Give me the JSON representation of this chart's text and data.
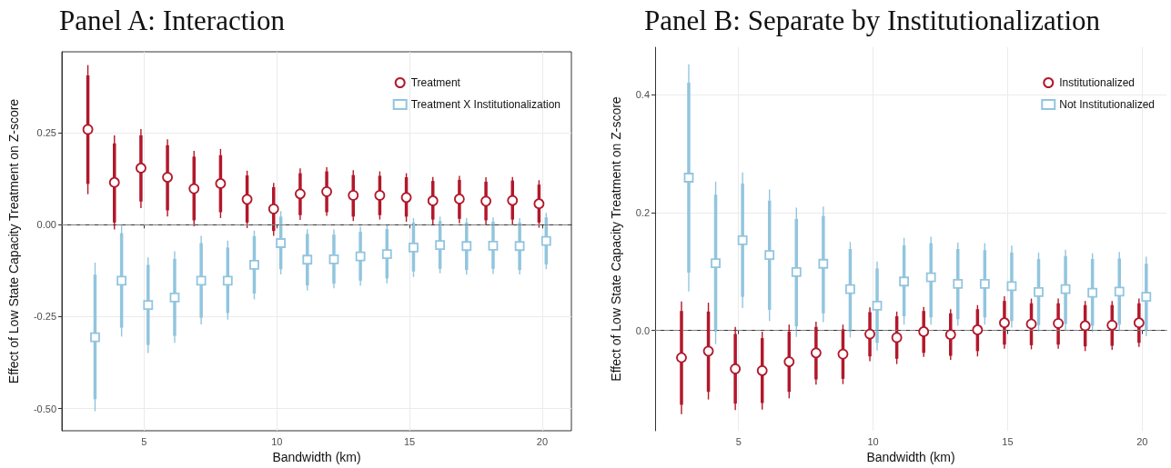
{
  "chart_data": [
    {
      "type": "scatter",
      "title": "Panel A: Interaction",
      "xlabel": "Bandwidth (km)",
      "ylabel": "Effect of Low State Capacity Treatment on Z-score",
      "xlim": [
        1.9,
        21.1
      ],
      "ylim": [
        -0.56,
        0.47
      ],
      "xticks": [
        5,
        10,
        15,
        20
      ],
      "yticks": [
        {
          "value": -0.5,
          "label": "-0.50"
        },
        {
          "value": -0.25,
          "label": "-0.25"
        },
        {
          "value": 0,
          "label": "0.00"
        },
        {
          "value": 0.25,
          "label": "0.25"
        }
      ],
      "grid": true,
      "legend": "top right",
      "ref_lines": [
        {
          "axis": "y",
          "value": 0,
          "line_style": "dashed",
          "color": "#7f7f7f"
        }
      ],
      "series": [
        {
          "name": "Treatment",
          "color": "#b2182b",
          "marker": "circle",
          "x": [
            2.88,
            3.88,
            4.88,
            5.88,
            6.88,
            7.88,
            8.88,
            9.88,
            10.88,
            11.88,
            12.88,
            13.88,
            14.88,
            15.88,
            16.88,
            17.88,
            18.88,
            19.88
          ],
          "values": [
            0.259,
            0.115,
            0.154,
            0.129,
            0.098,
            0.112,
            0.069,
            0.043,
            0.084,
            0.09,
            0.08,
            0.08,
            0.074,
            0.065,
            0.07,
            0.064,
            0.066,
            0.057
          ],
          "errors": [
            [
              0.083,
              0.434
            ],
            [
              -0.013,
              0.243
            ],
            [
              0.045,
              0.26
            ],
            [
              0.022,
              0.232
            ],
            [
              -0.004,
              0.201
            ],
            [
              0.018,
              0.206
            ],
            [
              -0.009,
              0.147
            ],
            [
              -0.03,
              0.114
            ],
            [
              0.013,
              0.153
            ],
            [
              0.024,
              0.156
            ],
            [
              0.01,
              0.148
            ],
            [
              0.014,
              0.145
            ],
            [
              0.008,
              0.14
            ],
            [
              0,
              0.13
            ],
            [
              0.004,
              0.133
            ],
            [
              0,
              0.129
            ],
            [
              0.001,
              0.13
            ],
            [
              -0.008,
              0.121
            ]
          ]
        },
        {
          "name": "Treatment X Institutionalization",
          "color": "#92c5de",
          "marker": "square",
          "x": [
            3.15,
            4.15,
            5.15,
            6.15,
            7.15,
            8.15,
            9.15,
            10.15,
            11.15,
            12.15,
            13.15,
            14.15,
            15.15,
            16.15,
            17.15,
            18.15,
            19.15,
            20.15
          ],
          "values": [
            -0.306,
            -0.152,
            -0.218,
            -0.198,
            -0.152,
            -0.152,
            -0.109,
            -0.05,
            -0.095,
            -0.094,
            -0.086,
            -0.08,
            -0.062,
            -0.055,
            -0.058,
            -0.057,
            -0.058,
            -0.044
          ],
          "errors": [
            [
              -0.507,
              -0.103
            ],
            [
              -0.304,
              0.002
            ],
            [
              -0.349,
              -0.089
            ],
            [
              -0.321,
              -0.072
            ],
            [
              -0.271,
              -0.03
            ],
            [
              -0.258,
              -0.043
            ],
            [
              -0.203,
              -0.016
            ],
            [
              -0.135,
              0.037
            ],
            [
              -0.179,
              -0.012
            ],
            [
              -0.173,
              -0.013
            ],
            [
              -0.166,
              -0.005
            ],
            [
              -0.16,
              -0.001
            ],
            [
              -0.142,
              0.018
            ],
            [
              -0.132,
              0.022
            ],
            [
              -0.136,
              0.018
            ],
            [
              -0.134,
              0.02
            ],
            [
              -0.135,
              0.018
            ],
            [
              -0.121,
              0.032
            ]
          ]
        },
        {
          "type": "bar",
          "color": "#b2182b",
          "x": [
            2.88,
            3.88,
            4.88,
            5.88,
            6.88,
            7.88,
            8.88,
            9.88,
            10.88,
            11.88,
            12.88,
            13.88,
            14.88,
            15.88,
            16.88,
            17.88,
            18.88,
            19.88
          ],
          "base": [
            0.111,
            0.006,
            0.063,
            0.039,
            0.012,
            0.034,
            0.006,
            -0.017,
            0.026,
            0.034,
            0.022,
            0.026,
            0.022,
            0.014,
            0.016,
            0.012,
            0.014,
            0.006
          ],
          "values": [
            0.295,
            0.215,
            0.18,
            0.177,
            0.173,
            0.155,
            0.128,
            0.119,
            0.114,
            0.111,
            0.113,
            0.107,
            0.107,
            0.105,
            0.106,
            0.105,
            0.106,
            0.103
          ]
        },
        {
          "type": "bar",
          "color": "#92c5de",
          "x": [
            3.15,
            4.15,
            5.15,
            6.15,
            7.15,
            8.15,
            9.15,
            10.15,
            11.15,
            12.15,
            13.15,
            14.15,
            15.15,
            16.15,
            17.15,
            18.15,
            19.15,
            20.15
          ],
          "base": [
            -0.474,
            -0.28,
            -0.327,
            -0.302,
            -0.253,
            -0.24,
            -0.187,
            -0.121,
            -0.165,
            -0.16,
            -0.152,
            -0.146,
            -0.127,
            -0.12,
            -0.123,
            -0.12,
            -0.123,
            -0.108
          ],
          "values": [
            0.338,
            0.257,
            0.218,
            0.209,
            0.203,
            0.178,
            0.156,
            0.143,
            0.14,
            0.133,
            0.133,
            0.134,
            0.133,
            0.13,
            0.129,
            0.128,
            0.129,
            0.128
          ]
        }
      ]
    },
    {
      "type": "scatter",
      "title": "Panel B: Separate by Institutionalization",
      "xlabel": "Bandwidth (km)",
      "ylabel": "Effect of Low State Capacity Treatment on Z-score",
      "xlim": [
        1.9,
        20.9
      ],
      "ylim": [
        -0.17,
        0.48
      ],
      "xticks": [
        5,
        10,
        15,
        20
      ],
      "yticks": [
        {
          "value": 0,
          "label": "0.0"
        },
        {
          "value": 0.2,
          "label": "0.2"
        },
        {
          "value": 0.4,
          "label": "0.4"
        }
      ],
      "grid": true,
      "legend": "top right",
      "ref_lines": [
        {
          "axis": "y",
          "value": 0,
          "line_style": "dashed",
          "color": "#7f7f7f"
        }
      ],
      "series": [
        {
          "name": "Institutionalized",
          "color": "#b2182b",
          "marker": "circle",
          "x": [
            2.88,
            3.88,
            4.88,
            5.88,
            6.88,
            7.88,
            8.88,
            9.88,
            10.88,
            11.88,
            12.88,
            13.88,
            14.88,
            15.88,
            16.88,
            17.88,
            18.88,
            19.88
          ],
          "values": [
            -0.046,
            -0.035,
            -0.065,
            -0.068,
            -0.053,
            -0.038,
            -0.04,
            -0.006,
            -0.012,
            -0.002,
            -0.007,
            0.001,
            0.013,
            0.011,
            0.012,
            0.008,
            0.009,
            0.013
          ],
          "errors": [
            [
              -0.142,
              0.049
            ],
            [
              -0.117,
              0.047
            ],
            [
              -0.135,
              0.006
            ],
            [
              -0.134,
              -0.002
            ],
            [
              -0.115,
              0.01
            ],
            [
              -0.092,
              0.015
            ],
            [
              -0.091,
              0.01
            ],
            [
              -0.052,
              0.039
            ],
            [
              -0.057,
              0.032
            ],
            [
              -0.045,
              0.04
            ],
            [
              -0.05,
              0.036
            ],
            [
              -0.044,
              0.043
            ],
            [
              -0.031,
              0.058
            ],
            [
              -0.032,
              0.054
            ],
            [
              -0.031,
              0.054
            ],
            [
              -0.035,
              0.05
            ],
            [
              -0.033,
              0.05
            ],
            [
              -0.028,
              0.054
            ]
          ]
        },
        {
          "name": "Not Institutionalized",
          "color": "#92c5de",
          "marker": "square",
          "x": [
            3.15,
            4.15,
            5.15,
            6.15,
            7.15,
            8.15,
            9.15,
            10.15,
            11.15,
            12.15,
            13.15,
            14.15,
            15.15,
            16.15,
            17.15,
            18.15,
            19.15,
            20.15
          ],
          "values": [
            0.259,
            0.114,
            0.153,
            0.128,
            0.099,
            0.113,
            0.07,
            0.042,
            0.083,
            0.09,
            0.079,
            0.079,
            0.075,
            0.065,
            0.07,
            0.064,
            0.066,
            0.057
          ],
          "errors": [
            [
              0.066,
              0.451
            ],
            [
              -0.023,
              0.252
            ],
            [
              0.038,
              0.268
            ],
            [
              0.016,
              0.239
            ],
            [
              -0.011,
              0.208
            ],
            [
              0.014,
              0.21
            ],
            [
              -0.012,
              0.15
            ],
            [
              -0.034,
              0.117
            ],
            [
              0.01,
              0.157
            ],
            [
              0.01,
              0.159
            ],
            [
              0.008,
              0.149
            ],
            [
              0.01,
              0.148
            ],
            [
              0.005,
              0.144
            ],
            [
              -0.002,
              0.132
            ],
            [
              0.001,
              0.137
            ],
            [
              -0.003,
              0.131
            ],
            [
              -0.001,
              0.133
            ],
            [
              -0.01,
              0.125
            ]
          ]
        },
        {
          "type": "bar",
          "color": "#b2182b",
          "x": [
            2.88,
            3.88,
            4.88,
            5.88,
            6.88,
            7.88,
            8.88,
            9.88,
            10.88,
            11.88,
            12.88,
            13.88,
            14.88,
            15.88,
            16.88,
            17.88,
            18.88,
            19.88
          ],
          "base": [
            -0.126,
            -0.104,
            -0.124,
            -0.123,
            -0.104,
            -0.083,
            -0.082,
            -0.044,
            -0.048,
            -0.038,
            -0.043,
            -0.035,
            -0.024,
            -0.025,
            -0.024,
            -0.027,
            -0.026,
            -0.021
          ],
          "values": [
            0.159,
            0.136,
            0.118,
            0.11,
            0.102,
            0.089,
            0.084,
            0.075,
            0.072,
            0.071,
            0.072,
            0.071,
            0.074,
            0.071,
            0.07,
            0.07,
            0.069,
            0.067
          ]
        },
        {
          "type": "bar",
          "color": "#92c5de",
          "x": [
            3.15,
            4.15,
            5.15,
            6.15,
            7.15,
            8.15,
            9.15,
            10.15,
            11.15,
            12.15,
            13.15,
            14.15,
            15.15,
            16.15,
            17.15,
            18.15,
            19.15,
            20.15
          ],
          "base": [
            0.098,
            -0.002,
            0.057,
            0.035,
            0.007,
            0.029,
            -0.002,
            -0.021,
            0.024,
            0.022,
            0.019,
            0.022,
            0.016,
            0.009,
            0.011,
            0.008,
            0.01,
            0
          ],
          "values": [
            0.322,
            0.232,
            0.192,
            0.185,
            0.182,
            0.165,
            0.14,
            0.126,
            0.12,
            0.126,
            0.119,
            0.114,
            0.116,
            0.112,
            0.115,
            0.113,
            0.112,
            0.113
          ]
        }
      ]
    }
  ]
}
